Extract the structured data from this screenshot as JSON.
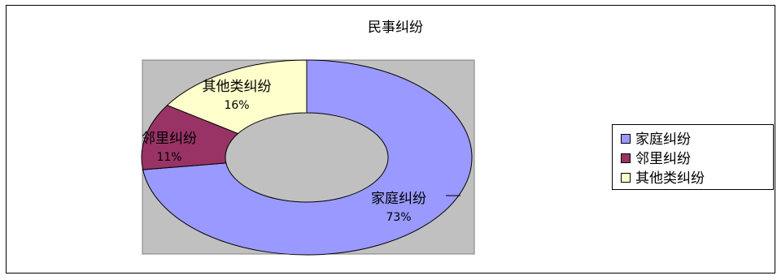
{
  "chart_data": {
    "type": "pie",
    "variant": "doughnut",
    "title": "民事纠纷",
    "categories": [
      "家庭纠纷",
      "邻里纠纷",
      "其他类纠纷"
    ],
    "values": [
      73,
      11,
      16
    ],
    "value_labels": [
      "73%",
      "11%",
      "16%"
    ],
    "colors": [
      "#9999ff",
      "#993366",
      "#ffffcc"
    ],
    "plot_area_color": "#c0c0c0",
    "legend_position": "right",
    "grid": false
  }
}
